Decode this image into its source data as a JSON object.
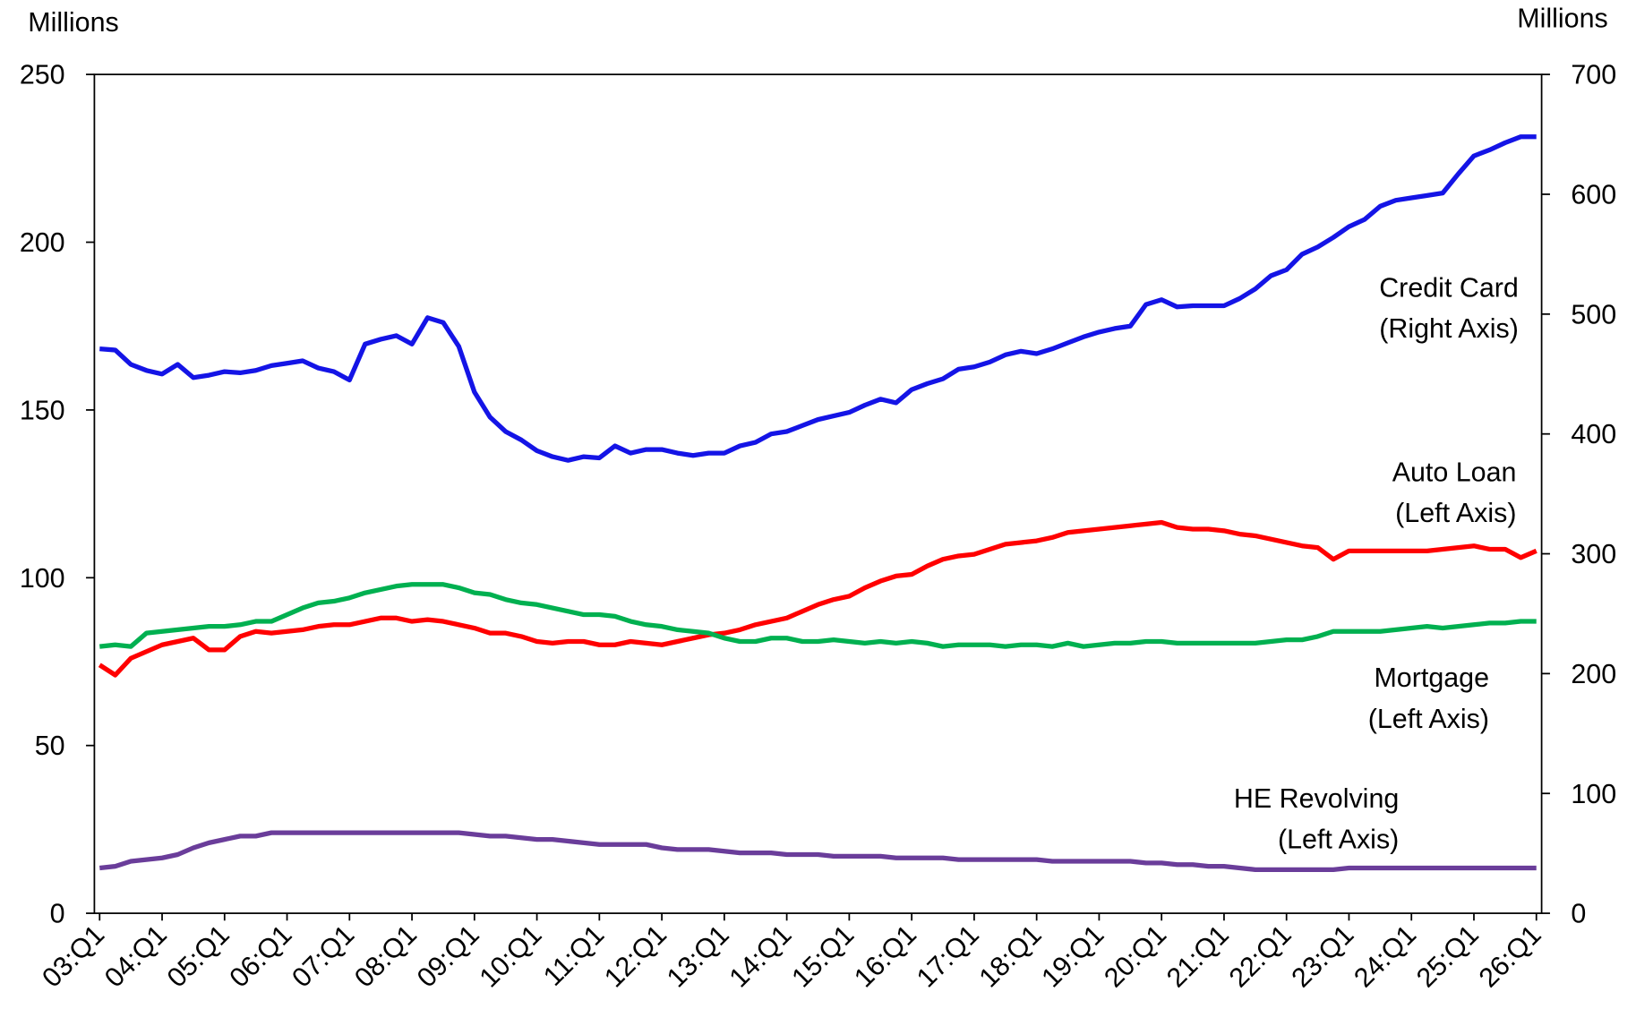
{
  "chart_data": {
    "type": "line",
    "y_label": "Millions",
    "y2_label": "Millions",
    "categories": [
      "03:Q1",
      null,
      null,
      null,
      "04:Q1",
      null,
      null,
      null,
      "05:Q1",
      null,
      null,
      null,
      "06:Q1",
      null,
      null,
      null,
      "07:Q1",
      null,
      null,
      null,
      "08:Q1",
      null,
      null,
      null,
      "09:Q1",
      null,
      null,
      null,
      "10:Q1",
      null,
      null,
      null,
      "11:Q1",
      null,
      null,
      null,
      "12:Q1",
      null,
      null,
      null,
      "13:Q1",
      null,
      null,
      null,
      "14:Q1",
      null,
      null,
      null,
      "15:Q1",
      null,
      null,
      null,
      "16:Q1",
      null,
      null,
      null,
      "17:Q1",
      null,
      null,
      null,
      "18:Q1",
      null,
      null,
      null,
      "19:Q1",
      null,
      null,
      null,
      "20:Q1",
      null,
      null,
      null,
      "21:Q1",
      null,
      null,
      null,
      "22:Q1",
      null,
      null,
      null,
      "23:Q1",
      null,
      null,
      null,
      "24:Q1",
      null,
      null,
      null,
      "25:Q1",
      null,
      null,
      null,
      "26:Q1"
    ],
    "ylim": [
      0,
      250
    ],
    "yticks": [
      0,
      50,
      100,
      150,
      200,
      250
    ],
    "y2lim": [
      0,
      700
    ],
    "y2ticks": [
      0,
      100,
      200,
      300,
      400,
      500,
      600,
      700
    ],
    "series": [
      {
        "name": "Credit Card (Right Axis)",
        "color": "#1414e6",
        "axis": "y2",
        "values": [
          471,
          470,
          458,
          453,
          450,
          458,
          447,
          449,
          452,
          451,
          453,
          457,
          459,
          461,
          455,
          452,
          445,
          475,
          479,
          482,
          475,
          497,
          493,
          473,
          435,
          414,
          402,
          395,
          386,
          381,
          378,
          381,
          380,
          390,
          384,
          387,
          387,
          384,
          382,
          384,
          384,
          390,
          393,
          400,
          402,
          407,
          412,
          415,
          418,
          424,
          429,
          426,
          437,
          442,
          446,
          454,
          456,
          460,
          466,
          469,
          467,
          471,
          476,
          481,
          485,
          488,
          490,
          508,
          512,
          506,
          507,
          507,
          507,
          513,
          521,
          532,
          537,
          550,
          556,
          564,
          573,
          579,
          590,
          595,
          597,
          599,
          601,
          617,
          632,
          637,
          643,
          648,
          648
        ]
      },
      {
        "name": "Auto Loan (Left Axis)",
        "color": "#ff0000",
        "values": [
          74,
          71,
          76,
          78,
          80,
          81,
          82,
          78.5,
          78.5,
          82.5,
          84,
          83.5,
          84,
          84.5,
          85.5,
          86,
          86,
          87,
          88,
          88,
          87,
          87.5,
          87,
          86,
          85,
          83.5,
          83.5,
          82.5,
          81,
          80.5,
          81,
          81,
          80,
          80,
          81,
          80.5,
          80,
          81,
          82,
          83,
          83.5,
          84.5,
          86,
          87,
          88,
          90,
          92,
          93.5,
          94.5,
          97,
          99,
          100.5,
          101,
          103.5,
          105.5,
          106.5,
          107,
          108.5,
          110,
          110.5,
          111,
          112,
          113.5,
          114,
          114.5,
          115,
          115.5,
          116,
          116.5,
          115,
          114.5,
          114.5,
          114,
          113,
          112.5,
          111.5,
          110.5,
          109.5,
          109,
          105.5,
          108,
          108,
          108,
          108,
          108,
          108,
          108.5,
          109,
          109.5,
          108.5,
          108.5,
          106,
          108
        ]
      },
      {
        "name": "Mortgage (Left Axis)",
        "color": "#00b050",
        "values": [
          79.5,
          80,
          79.5,
          83.5,
          84,
          84.5,
          85,
          85.5,
          85.5,
          86,
          87,
          87,
          89,
          91,
          92.5,
          93,
          94,
          95.5,
          96.5,
          97.5,
          98,
          98,
          98,
          97,
          95.5,
          95,
          93.5,
          92.5,
          92,
          91,
          90,
          89,
          89,
          88.5,
          87,
          86,
          85.5,
          84.5,
          84,
          83.5,
          82,
          81,
          81,
          82,
          82,
          81,
          81,
          81.5,
          81,
          80.5,
          81,
          80.5,
          81,
          80.5,
          79.5,
          80,
          80,
          80,
          79.5,
          80,
          80,
          79.5,
          80.5,
          79.5,
          80,
          80.5,
          80.5,
          81,
          81,
          80.5,
          80.5,
          80.5,
          80.5,
          80.5,
          80.5,
          81,
          81.5,
          81.5,
          82.5,
          84,
          84,
          84,
          84,
          84.5,
          85,
          85.5,
          85,
          85.5,
          86,
          86.5,
          86.5,
          87,
          87
        ]
      },
      {
        "name": "HE Revolving (Left Axis)",
        "color": "#6a3d9a",
        "values": [
          13.5,
          14,
          15.5,
          16,
          16.5,
          17.5,
          19.5,
          21,
          22,
          23,
          23,
          24,
          24,
          24,
          24,
          24,
          24,
          24,
          24,
          24,
          24,
          24,
          24,
          24,
          23.5,
          23,
          23,
          22.5,
          22,
          22,
          21.5,
          21,
          20.5,
          20.5,
          20.5,
          20.5,
          19.5,
          19,
          19,
          19,
          18.5,
          18,
          18,
          18,
          17.5,
          17.5,
          17.5,
          17,
          17,
          17,
          17,
          16.5,
          16.5,
          16.5,
          16.5,
          16,
          16,
          16,
          16,
          16,
          16,
          15.5,
          15.5,
          15.5,
          15.5,
          15.5,
          15.5,
          15,
          15,
          14.5,
          14.5,
          14,
          14,
          13.5,
          13,
          13,
          13,
          13,
          13,
          13,
          13.5,
          13.5,
          13.5,
          13.5,
          13.5,
          13.5,
          13.5,
          13.5,
          13.5,
          13.5,
          13.5,
          13.5,
          13.5
        ]
      }
    ]
  }
}
